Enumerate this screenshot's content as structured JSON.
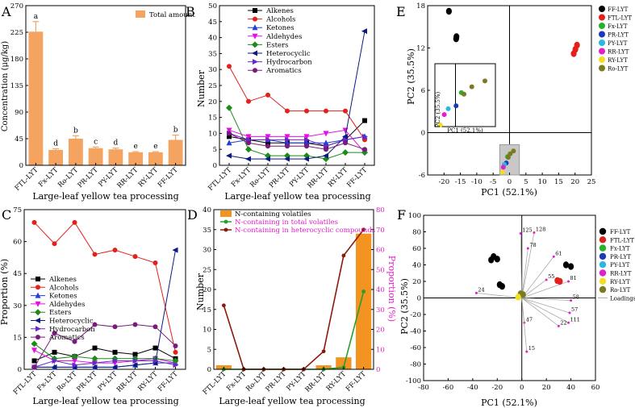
{
  "chart_data": [
    {
      "panel": "A",
      "type": "bar",
      "categories": [
        "FTL-LYT",
        "Fx-LYT",
        "Ro-LYT",
        "PR-LYT",
        "PY-LYT",
        "RR-LYT",
        "RY-LYT",
        "FF-LYT"
      ],
      "values": [
        226,
        26,
        45,
        29,
        27,
        22,
        22,
        43
      ],
      "errors": [
        17,
        2,
        5,
        2,
        2,
        1,
        1,
        8
      ],
      "letters": [
        "a",
        "d",
        "b",
        "c",
        "d",
        "e",
        "e",
        "b"
      ],
      "legend": [
        "Total amount"
      ],
      "ylabel": "Concentration (μg/kg)",
      "xlabel": "Large-leaf yellow tea processing",
      "ylim": [
        0,
        270
      ],
      "yticks": [
        "0",
        "45",
        "90",
        "135",
        "180",
        "225",
        "270"
      ],
      "colors": {
        "bar": "#f4a460"
      }
    },
    {
      "panel": "B",
      "type": "line",
      "categories": [
        "FTL-LYT",
        "Fx-LYT",
        "Ro-LYT",
        "PR-LYT",
        "PY-LYT",
        "RR-LYT",
        "RY-LYT",
        "FF-LYT"
      ],
      "ylabel": "Number",
      "xlabel": "Large-leaf yellow tea processing",
      "ylim": [
        0,
        50
      ],
      "yticks": [
        "0",
        "5",
        "10",
        "15",
        "20",
        "25",
        "30",
        "35",
        "40",
        "45",
        "50"
      ],
      "series": [
        {
          "name": "Alkenes",
          "color": "#000000",
          "marker": "square",
          "values": [
            9,
            8,
            7,
            7,
            7,
            6,
            8,
            14
          ]
        },
        {
          "name": "Alcohols",
          "color": "#e2211c",
          "marker": "circle",
          "values": [
            31,
            20,
            22,
            17,
            17,
            17,
            17,
            8
          ]
        },
        {
          "name": "Ketones",
          "color": "#1f3fd6",
          "marker": "triangle",
          "values": [
            7,
            8,
            8,
            7,
            7,
            7,
            8,
            9
          ]
        },
        {
          "name": "Aldehydes",
          "color": "#e40ee4",
          "marker": "triangle-down",
          "values": [
            11,
            9,
            9,
            9,
            9,
            10,
            11,
            4
          ]
        },
        {
          "name": "Esters",
          "color": "#1a8c1a",
          "marker": "diamond",
          "values": [
            18,
            5,
            3,
            3,
            3,
            2,
            4,
            4
          ]
        },
        {
          "name": "Heterocyclic",
          "color": "#0a1a80",
          "marker": "triangle-left",
          "values": [
            3,
            2,
            2,
            2,
            2,
            3,
            9,
            42
          ]
        },
        {
          "name": "Hydrocarbon",
          "color": "#6a28c8",
          "marker": "triangle-right",
          "values": [
            10,
            8,
            8,
            8,
            8,
            6,
            8,
            9
          ]
        },
        {
          "name": "Aromatics",
          "color": "#7a1a7a",
          "marker": "circle",
          "values": [
            10,
            7,
            6,
            6,
            6,
            5,
            7,
            5
          ]
        }
      ]
    },
    {
      "panel": "C",
      "type": "line",
      "categories": [
        "FTL-LYT",
        "Fx-LYT",
        "Ro-LYT",
        "PR-LYT",
        "PY-LYT",
        "RR-LYT",
        "RY-LYT",
        "FF-LYT"
      ],
      "ylabel": "Proportion (%)",
      "xlabel": "Large-leaf yellow tea processing",
      "ylim": [
        0,
        75
      ],
      "yticks": [
        "0",
        "15",
        "30",
        "45",
        "60",
        "75"
      ],
      "series": [
        {
          "name": "Alkenes",
          "color": "#000000",
          "marker": "square",
          "values": [
            4,
            8,
            6,
            10,
            8,
            7,
            10,
            5
          ]
        },
        {
          "name": "Alcohols",
          "color": "#e2211c",
          "marker": "circle",
          "values": [
            69,
            59,
            69,
            54,
            56,
            53,
            50,
            8
          ]
        },
        {
          "name": "Ketones",
          "color": "#1f3fd6",
          "marker": "triangle",
          "values": [
            1,
            1,
            1,
            1,
            1,
            2,
            3,
            3
          ]
        },
        {
          "name": "Aldehydes",
          "color": "#e40ee4",
          "marker": "triangle-down",
          "values": [
            9,
            4,
            4,
            3,
            3,
            4,
            5,
            3
          ]
        },
        {
          "name": "Esters",
          "color": "#1a8c1a",
          "marker": "diamond",
          "values": [
            12,
            5,
            6,
            5,
            5,
            5,
            5,
            4
          ]
        },
        {
          "name": "Heterocyclic",
          "color": "#0a1a80",
          "marker": "triangle-left",
          "values": [
            1,
            1,
            1,
            1,
            1,
            2,
            3,
            56
          ]
        },
        {
          "name": "Hydrocarbon",
          "color": "#6a28c8",
          "marker": "triangle-right",
          "values": [
            1,
            4,
            2,
            3,
            4,
            4,
            4,
            2
          ]
        },
        {
          "name": "Aromatics",
          "color": "#7a1a7a",
          "marker": "circle",
          "values": [
            1,
            17,
            13,
            21,
            20,
            21,
            20,
            11
          ]
        }
      ]
    },
    {
      "panel": "D",
      "type": "bar",
      "categories": [
        "FTL-LYT",
        "Fx-LYT",
        "Ro-LYT",
        "PR-LYT",
        "PY-LYT",
        "RR-LYT",
        "RY-LYT",
        "FF-LYT"
      ],
      "xlabel": "Large-leaf yellow tea processing",
      "ylabel": "Number",
      "ylabel_right": "Proportion (%)",
      "ylim": [
        0,
        40
      ],
      "ylim_right": [
        0,
        80
      ],
      "yticks": [
        "0",
        "5",
        "10",
        "15",
        "20",
        "25",
        "30",
        "35",
        "40"
      ],
      "yticks_right": [
        "0",
        "10",
        "20",
        "30",
        "40",
        "50",
        "60",
        "70",
        "80"
      ],
      "series": [
        {
          "name": "N-containing volatiles",
          "kind": "bar",
          "axis": "left",
          "color": "#f39322",
          "values": [
            1,
            0,
            0,
            0,
            0,
            1,
            3,
            34
          ]
        },
        {
          "name": "N-containing in total volatiles",
          "kind": "line",
          "axis": "right",
          "color": "#2a9d2a",
          "values": [
            0,
            0,
            0,
            0,
            0,
            0,
            1,
            39
          ]
        },
        {
          "name": "N-containing in heterocyclic compounds",
          "kind": "line",
          "axis": "right",
          "color": "#8b1a0a",
          "values": [
            32,
            0,
            0,
            0,
            0,
            9,
            57,
            70
          ]
        }
      ]
    },
    {
      "panel": "E",
      "type": "scatter",
      "xlabel": "PC1 (52.1%)",
      "ylabel": "PC2 (35.5%)",
      "xlim": [
        -25,
        25
      ],
      "ylim": [
        -6,
        18
      ],
      "xticks": [
        "-20",
        "-15",
        "-10",
        "-5",
        "0",
        "5",
        "10",
        "15",
        "20",
        "25"
      ],
      "yticks": [
        "-6",
        "0",
        "6",
        "12",
        "18"
      ],
      "inset_xlabel": "PC1 (52.1%)",
      "inset_ylabel": "PC2 (35.5%)",
      "groups": [
        {
          "name": "FF-LYT",
          "color": "#000000",
          "points": [
            [
              -18.5,
              17.2
            ],
            [
              -16.2,
              13.6
            ],
            [
              -16.3,
              13.3
            ]
          ]
        },
        {
          "name": "FTL-LYT",
          "color": "#e2211c",
          "points": [
            [
              20.6,
              12.4
            ],
            [
              20.1,
              11.8
            ],
            [
              19.6,
              11.2
            ]
          ]
        },
        {
          "name": "Fx-LYT",
          "color": "#2ab02a",
          "points": [
            [
              -0.6,
              -3.4
            ]
          ]
        },
        {
          "name": "PR-LYT",
          "color": "#1a3ab8",
          "points": [
            [
              -1.0,
              -4.3
            ]
          ]
        },
        {
          "name": "PY-LYT",
          "color": "#2ab8e0",
          "points": [
            [
              -1.6,
              -4.5
            ]
          ]
        },
        {
          "name": "RR-LYT",
          "color": "#e020c8",
          "points": [
            [
              -1.9,
              -4.9
            ]
          ]
        },
        {
          "name": "RY-LYT",
          "color": "#f0e020",
          "points": [
            [
              -2.2,
              -5.6
            ]
          ]
        },
        {
          "name": "Ro-LYT",
          "color": "#7a7a20",
          "points": [
            [
              0.2,
              -3.0
            ],
            [
              -0.4,
              -3.5
            ],
            [
              1.2,
              -2.6
            ]
          ]
        }
      ]
    },
    {
      "panel": "F",
      "type": "scatter",
      "xlabel": "PC1 (52.1%)",
      "ylabel": "PC2 (35.5%)",
      "xlim": [
        -80,
        60
      ],
      "ylim": [
        -100,
        100
      ],
      "xticks": [
        "-80",
        "-60",
        "-40",
        "-20",
        "0",
        "20",
        "40",
        "60"
      ],
      "yticks": [
        "-100",
        "-80",
        "-60",
        "-40",
        "-20",
        "0",
        "20",
        "40",
        "60",
        "80",
        "100"
      ],
      "legend": [
        "FF-LYT",
        "FTL-LYT",
        "Fx-LYT",
        "PR-LYT",
        "PY-LYT",
        "RR-LYT",
        "RY-LYT",
        "Ro-LYT",
        "Loadings"
      ],
      "colors": [
        "#000000",
        "#e2211c",
        "#2ab02a",
        "#1a3ab8",
        "#2ab8e0",
        "#e020c8",
        "#f0e020",
        "#7a7a20",
        "#aaaaaa"
      ],
      "score_points": [
        {
          "group": "FF-LYT",
          "points": [
            [
              -23,
              50
            ],
            [
              -20,
              47
            ],
            [
              -25,
              46
            ],
            [
              -18,
              16
            ],
            [
              -16,
              14
            ],
            [
              36,
              40
            ],
            [
              40,
              38
            ]
          ]
        },
        {
          "group": "FTL-LYT",
          "points": [
            [
              29,
              21
            ],
            [
              31,
              20
            ]
          ]
        },
        {
          "group": "Ro-LYT",
          "points": [
            [
              -1,
              5
            ],
            [
              1,
              4
            ]
          ]
        },
        {
          "group": "RY-LYT",
          "points": [
            [
              -3,
              1
            ]
          ]
        }
      ],
      "loadings": [
        {
          "label": "125",
          "x": -1,
          "y": 78
        },
        {
          "label": "128",
          "x": 10,
          "y": 79
        },
        {
          "label": "78",
          "x": 5,
          "y": 60
        },
        {
          "label": "61",
          "x": 26,
          "y": 50
        },
        {
          "label": "24",
          "x": -37,
          "y": 6
        },
        {
          "label": "55",
          "x": 20,
          "y": 22
        },
        {
          "label": "81",
          "x": 38,
          "y": 20
        },
        {
          "label": "58",
          "x": 40,
          "y": -3
        },
        {
          "label": "57",
          "x": 39,
          "y": -18
        },
        {
          "label": "111",
          "x": 38,
          "y": -30
        },
        {
          "label": "22",
          "x": 30,
          "y": -34
        },
        {
          "label": "47",
          "x": 2,
          "y": -30
        },
        {
          "label": "15",
          "x": 4,
          "y": -65
        }
      ]
    }
  ],
  "panel_labels": [
    "A",
    "B",
    "C",
    "D",
    "E",
    "F"
  ]
}
